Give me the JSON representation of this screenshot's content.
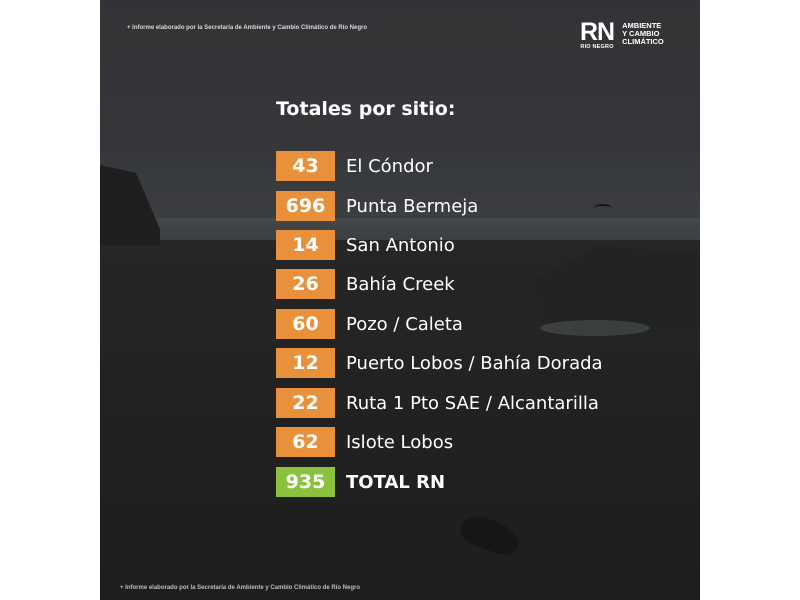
{
  "source_note": "+ Informe elaborado por la Secretaría de Ambiente y Cambio Climático de Río Negro",
  "logo": {
    "mark": "RN",
    "sub": "RIO NEGRO",
    "lines": [
      "AMBIENTE",
      "Y CAMBIO",
      "CLIMÁTICO"
    ]
  },
  "heading": "Totales por sitio:",
  "sites": [
    {
      "value": "43",
      "name": "El Cóndor"
    },
    {
      "value": "696",
      "name": "Punta Bermeja"
    },
    {
      "value": "14",
      "name": "San Antonio"
    },
    {
      "value": "26",
      "name": "Bahía Creek"
    },
    {
      "value": "60",
      "name": "Pozo / Caleta"
    },
    {
      "value": "12",
      "name": "Puerto Lobos / Bahía Dorada"
    },
    {
      "value": "22",
      "name": "Ruta 1 Pto SAE / Alcantarilla"
    },
    {
      "value": "62",
      "name": "Islote Lobos"
    }
  ],
  "total": {
    "value": "935",
    "name": "TOTAL RN"
  },
  "colors": {
    "badge": "#e8913a",
    "total_badge": "#8ac33b"
  }
}
